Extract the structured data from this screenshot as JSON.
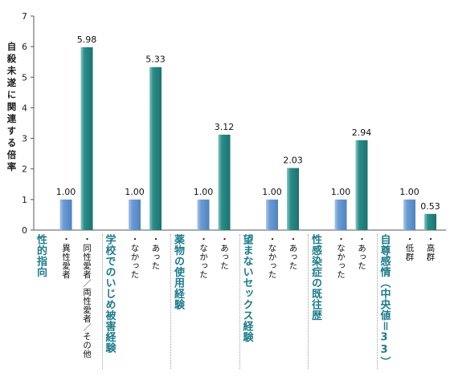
{
  "ylabel": "自殺未遂に関連する倍率",
  "chart_data": {
    "type": "bar",
    "ylabel": "自殺未遂に関連する倍率",
    "ylim": [
      0,
      7
    ],
    "yticks": [
      0,
      1,
      2,
      3,
      4,
      5,
      6,
      7
    ],
    "grid": false,
    "groups": [
      {
        "name": "性的指向",
        "categories": [
          "・異性愛者",
          "・同性愛者／両性愛者／その他"
        ],
        "values": [
          1.0,
          5.98
        ],
        "labels": [
          "1.00",
          "5.98"
        ]
      },
      {
        "name": "学校でのいじめ被害経験",
        "categories": [
          "・なかった",
          "・あった"
        ],
        "values": [
          1.0,
          5.33
        ],
        "labels": [
          "1.00",
          "5.33"
        ]
      },
      {
        "name": "薬物の使用経験",
        "categories": [
          "・なかった",
          "・あった"
        ],
        "values": [
          1.0,
          3.12
        ],
        "labels": [
          "1.00",
          "3.12"
        ]
      },
      {
        "name": "望まないセックス経験",
        "categories": [
          "・なかった",
          "・あった"
        ],
        "values": [
          1.0,
          2.03
        ],
        "labels": [
          "1.00",
          "2.03"
        ]
      },
      {
        "name": "性感染症の既往歴",
        "categories": [
          "・なかった",
          "・あった"
        ],
        "values": [
          1.0,
          2.94
        ],
        "labels": [
          "1.00",
          "2.94"
        ]
      },
      {
        "name": "自尊感情（中央値＝33）",
        "categories": [
          "・低群",
          "・高群"
        ],
        "values": [
          1.0,
          0.53
        ],
        "labels": [
          "1.00",
          "0.53"
        ]
      }
    ],
    "colors": {
      "reference": "#5b8fc9",
      "compare": "#1f7f7c",
      "group_label": "#1d7b8c"
    }
  }
}
